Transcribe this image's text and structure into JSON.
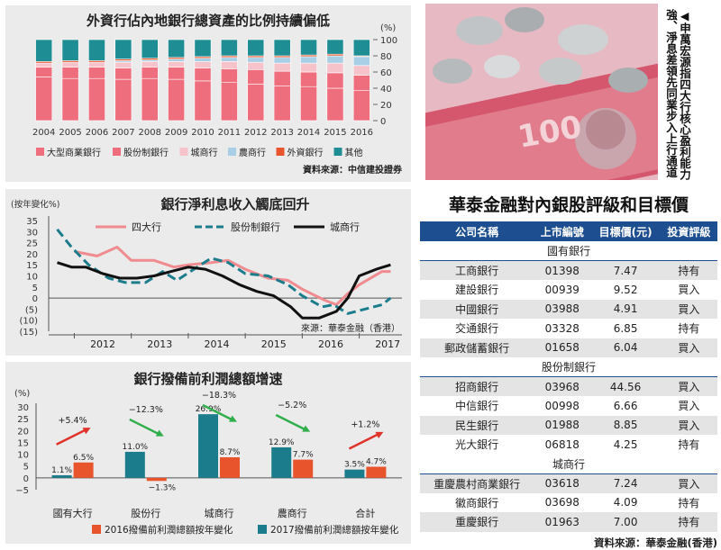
{
  "chart_data": [
    {
      "type": "bar",
      "stacked": true,
      "title": "外資行佔內地銀行總資產的比例持續偏低",
      "unit": "(%)",
      "categories": [
        "2004",
        "2005",
        "2006",
        "2007",
        "2008",
        "2009",
        "2010",
        "2011",
        "2012",
        "2013",
        "2014",
        "2015",
        "2016"
      ],
      "series": [
        {
          "name": "大型商業銀行",
          "color": "#ee6e7d",
          "values": [
            54,
            52,
            52,
            51,
            52,
            51,
            49,
            47,
            45,
            43,
            42,
            40,
            37
          ]
        },
        {
          "name": "股份制銀行",
          "color": "#ee6e7d",
          "values": [
            12,
            14,
            14,
            14,
            14,
            15,
            16,
            17,
            18,
            18,
            18,
            19,
            19
          ]
        },
        {
          "name": "城商行",
          "color": "#f6c3cb",
          "values": [
            5,
            6,
            6,
            7,
            7,
            7,
            8,
            9,
            9,
            10,
            11,
            12,
            12
          ]
        },
        {
          "name": "農商行",
          "color": "#a9cfe6",
          "values": [
            0,
            0,
            0,
            2,
            2,
            3,
            4,
            5,
            6,
            7,
            8,
            9,
            11
          ]
        },
        {
          "name": "外資銀行",
          "color": "#e8542c",
          "values": [
            2,
            2,
            2,
            2,
            2,
            2,
            2,
            2,
            2,
            2,
            2,
            2,
            1
          ]
        },
        {
          "name": "其他",
          "color": "#1f8e94",
          "values": [
            27,
            26,
            26,
            24,
            23,
            22,
            21,
            20,
            20,
            20,
            19,
            18,
            20
          ]
        }
      ],
      "yticks": [
        "100",
        "80",
        "60",
        "40",
        "20",
        "0"
      ],
      "ylim": [
        0,
        100
      ],
      "legend_position": "bottom",
      "source": "資料來源：中信建投證券"
    },
    {
      "type": "line",
      "title": "銀行淨利息收入觸底回升",
      "ylabel": "(按年變化%)",
      "ylim": [
        -15,
        35
      ],
      "yticks": [
        "35",
        "30",
        "25",
        "20",
        "15",
        "10",
        "5",
        "0",
        "(5)",
        "(10)",
        "(15)"
      ],
      "xticks": [
        "2012",
        "2013",
        "2014",
        "2015",
        "2016",
        "2017"
      ],
      "series": [
        {
          "name": "四大行",
          "color": "#f08b8f",
          "style": "solid",
          "points": [
            [
              2012,
              21
            ],
            [
              2012.4,
              19
            ],
            [
              2012.75,
              23
            ],
            [
              2013,
              17
            ],
            [
              2013.4,
              17
            ],
            [
              2013.75,
              14
            ],
            [
              2014,
              15
            ],
            [
              2014.4,
              16
            ],
            [
              2014.7,
              17
            ],
            [
              2015,
              13
            ],
            [
              2015.4,
              9
            ],
            [
              2015.75,
              8
            ],
            [
              2016,
              4
            ],
            [
              2016.4,
              -1
            ],
            [
              2016.6,
              -3
            ],
            [
              2016.8,
              2
            ],
            [
              2017,
              6
            ],
            [
              2017.4,
              12
            ],
            [
              2017.55,
              12
            ]
          ]
        },
        {
          "name": "股份制銀行",
          "color": "#1b7d8c",
          "style": "dashed",
          "points": [
            [
              2011.7,
              31
            ],
            [
              2011.95,
              23
            ],
            [
              2012.25,
              15
            ],
            [
              2012.6,
              9
            ],
            [
              2012.9,
              7
            ],
            [
              2013.25,
              7
            ],
            [
              2013.55,
              12
            ],
            [
              2013.8,
              8
            ],
            [
              2014.1,
              13
            ],
            [
              2014.4,
              18
            ],
            [
              2014.7,
              16
            ],
            [
              2015,
              11
            ],
            [
              2015.4,
              10
            ],
            [
              2015.75,
              6
            ],
            [
              2016,
              1
            ],
            [
              2016.35,
              -4
            ],
            [
              2016.55,
              -3
            ],
            [
              2016.8,
              -7
            ],
            [
              2017.1,
              -5
            ],
            [
              2017.4,
              -3
            ],
            [
              2017.55,
              0
            ]
          ]
        },
        {
          "name": "城商行",
          "color": "#111111",
          "style": "solid",
          "points": [
            [
              2011.7,
              16
            ],
            [
              2011.95,
              14
            ],
            [
              2012.2,
              14
            ],
            [
              2012.5,
              11
            ],
            [
              2012.8,
              9
            ],
            [
              2013.1,
              9
            ],
            [
              2013.4,
              10
            ],
            [
              2013.7,
              12
            ],
            [
              2014,
              14
            ],
            [
              2014.3,
              13
            ],
            [
              2014.6,
              10
            ],
            [
              2014.9,
              6
            ],
            [
              2015.2,
              3
            ],
            [
              2015.5,
              1
            ],
            [
              2015.8,
              -4
            ],
            [
              2016,
              -9
            ],
            [
              2016.3,
              -9
            ],
            [
              2016.6,
              -6
            ],
            [
              2016.8,
              0
            ],
            [
              2017,
              10
            ],
            [
              2017.3,
              13
            ],
            [
              2017.55,
              15
            ]
          ]
        }
      ],
      "legend_position": "top",
      "source": "來源：華泰金融（香港）"
    },
    {
      "type": "bar",
      "title": "銀行撥備前利潤總額增速",
      "unit": "(%)",
      "categories": [
        "國有大行",
        "股份行",
        "城商行",
        "農商行",
        "合計"
      ],
      "series": [
        {
          "name": "2016撥備前利潤總額按年變化",
          "color": "#e8542c",
          "values": [
            6.5,
            -1.3,
            8.7,
            7.7,
            4.7
          ]
        },
        {
          "name": "2017撥備前利潤總額按年變化",
          "color": "#1b7d8c",
          "values": [
            1.1,
            11.0,
            26.9,
            12.9,
            3.5
          ]
        }
      ],
      "value_labels_2016": [
        "6.5%",
        "−1.3%",
        "8.7%",
        "7.7%",
        "4.7%"
      ],
      "value_labels_2017": [
        "1.1%",
        "11.0%",
        "26.9%",
        "12.9%",
        "3.5%"
      ],
      "changes": [
        "+5.4%",
        "−12.3%",
        "−18.3%",
        "−5.2%",
        "+1.2%"
      ],
      "ylim": [
        -5,
        30
      ],
      "yticks": [
        "30",
        "25",
        "20",
        "15",
        "10",
        "5",
        "0",
        "−5"
      ],
      "legend_position": "bottom"
    }
  ],
  "caption": "◀申萬宏源指四大行核心盈利能力強、淨息差領先同業步入上行通道",
  "table": {
    "title": "華泰金融對內銀股評級和目標價",
    "headers": [
      "公司名稱",
      "上市編號",
      "目標價(元)",
      "投資評級"
    ],
    "sections": [
      {
        "name": "國有銀行",
        "rows": [
          [
            "工商銀行",
            "01398",
            "7.47",
            "持有"
          ],
          [
            "建設銀行",
            "00939",
            "9.52",
            "買入"
          ],
          [
            "中國銀行",
            "03988",
            "4.91",
            "買入"
          ],
          [
            "交通銀行",
            "03328",
            "6.85",
            "持有"
          ],
          [
            "郵政儲蓄銀行",
            "01658",
            "6.04",
            "買入"
          ]
        ]
      },
      {
        "name": "股份制銀行",
        "rows": [
          [
            "招商銀行",
            "03968",
            "44.56",
            "買入"
          ],
          [
            "中信銀行",
            "00998",
            "6.66",
            "買入"
          ],
          [
            "民生銀行",
            "01988",
            "8.85",
            "買入"
          ],
          [
            "光大銀行",
            "06818",
            "4.25",
            "持有"
          ]
        ]
      },
      {
        "name": "城商行",
        "rows": [
          [
            "重慶農村商業銀行",
            "03618",
            "7.24",
            "買入"
          ],
          [
            "徽商銀行",
            "03698",
            "4.09",
            "持有"
          ],
          [
            "重慶銀行",
            "01963",
            "7.00",
            "持有"
          ]
        ]
      }
    ],
    "source": "資料來源：華泰金融(香港)"
  }
}
